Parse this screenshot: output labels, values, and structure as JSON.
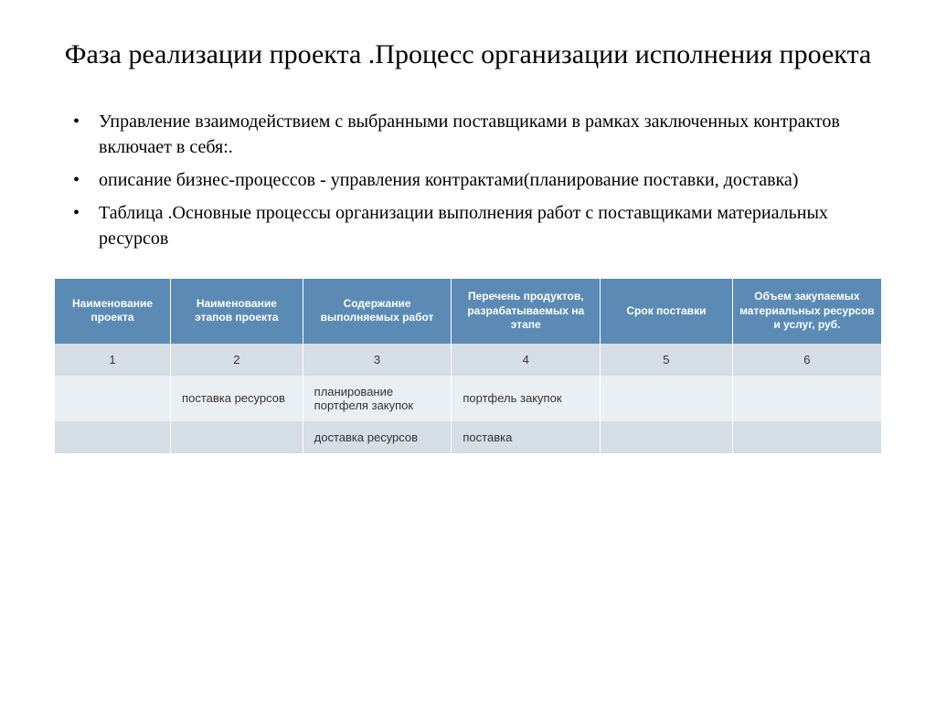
{
  "title": "Фаза реализации проекта .Процесс организации исполнения проекта",
  "bullets": [
    "Управление взаимодействием с выбранными поставщиками в рамках заключенных контрактов включает в себя:.",
    "описание бизнес-процессов - управления контрактами(планирование поставки, доставка)",
    " Таблица .Основные процессы организации выполнения работ с поставщиками  материальных ресурсов"
  ],
  "table": {
    "type": "table",
    "header_bg_color": "#5b8bb5",
    "header_text_color": "#ffffff",
    "row_alt_color_1": "#d5dde5",
    "row_alt_color_2": "#eaeff4",
    "header_fontsize": 12,
    "cell_fontsize": 13,
    "columns": [
      {
        "label": "Наименование проекта",
        "width": "14%"
      },
      {
        "label": "Наименование этапов проекта",
        "width": "16%"
      },
      {
        "label": "Содержание выполняемых работ",
        "width": "18%"
      },
      {
        "label": "Перечень продуктов, разрабатываемых на этапе",
        "width": "18%"
      },
      {
        "label": "Срок поставки",
        "width": "16%"
      },
      {
        "label": "Объем закупаемых материальных ресурсов и услуг, руб.",
        "width": "18%"
      }
    ],
    "number_row": [
      "1",
      "2",
      "3",
      "4",
      "5",
      "6"
    ],
    "data_rows": [
      [
        "",
        "          поставка ресурсов",
        "планирование портфеля закупок",
        "          портфель закупок",
        "",
        ""
      ],
      [
        "",
        "",
        "доставка ресурсов",
        "поставка",
        "",
        ""
      ]
    ]
  },
  "styling": {
    "background_color": "#ffffff",
    "title_fontsize": 30,
    "title_color": "#000000",
    "bullet_fontsize": 20,
    "bullet_color": "#000000",
    "font_family_main": "Times New Roman",
    "font_family_table": "Arial"
  }
}
